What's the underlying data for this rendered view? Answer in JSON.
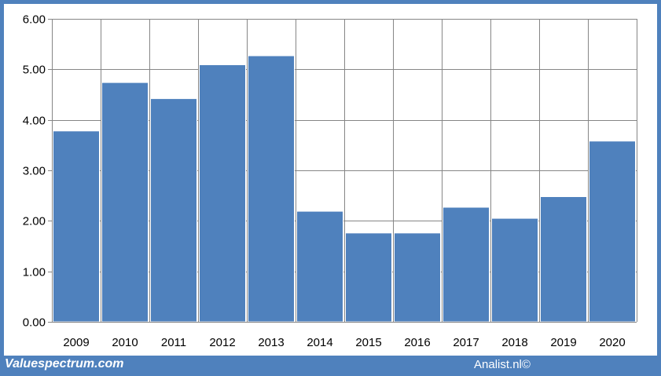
{
  "chart_data": {
    "type": "bar",
    "categories": [
      "2009",
      "2010",
      "2011",
      "2012",
      "2013",
      "2014",
      "2015",
      "2016",
      "2017",
      "2018",
      "2019",
      "2020"
    ],
    "values": [
      3.78,
      4.74,
      4.42,
      5.09,
      5.27,
      2.19,
      1.76,
      1.76,
      2.27,
      2.05,
      2.48,
      3.58
    ],
    "title": "",
    "xlabel": "",
    "ylabel": "",
    "ylim": [
      0,
      6
    ],
    "yticks": [
      "0.00",
      "1.00",
      "2.00",
      "3.00",
      "4.00",
      "5.00",
      "6.00"
    ],
    "grid": true,
    "bar_color": "#4f81bd",
    "grid_color": "#868686"
  },
  "footer": {
    "left": "Valuespectrum.com",
    "right": "Analist.nl©"
  },
  "colors": {
    "frame": "#4f81bd",
    "background": "#ffffff"
  }
}
